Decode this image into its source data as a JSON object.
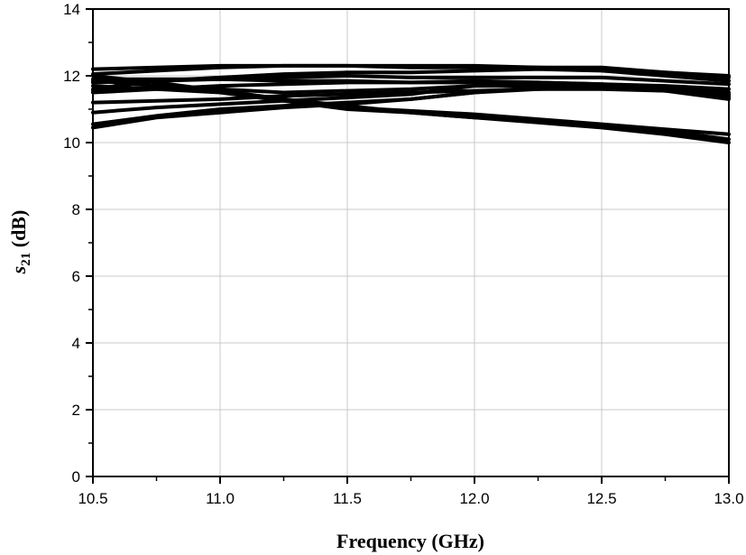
{
  "chart_data": {
    "type": "line",
    "title": "",
    "xlabel": "Frequency (GHz)",
    "ylabel_main": "s",
    "ylabel_sub": "21",
    "ylabel_unit": " (dB)",
    "xlim": [
      10.5,
      13.0
    ],
    "ylim": [
      0,
      14
    ],
    "xticks": [
      "10.5",
      "11.0",
      "11.5",
      "12.0",
      "12.5",
      "13.0"
    ],
    "yticks": [
      "0",
      "2",
      "4",
      "6",
      "8",
      "10",
      "12",
      "14"
    ],
    "grid": true,
    "x": [
      10.5,
      10.75,
      11.0,
      11.25,
      11.5,
      11.75,
      12.0,
      12.25,
      12.5,
      12.75,
      13.0
    ],
    "series": [
      {
        "values": [
          12.2,
          12.25,
          12.3,
          12.3,
          12.3,
          12.25,
          12.25,
          12.25,
          12.25,
          12.1,
          12.0
        ]
      },
      {
        "values": [
          12.05,
          12.15,
          12.25,
          12.3,
          12.3,
          12.3,
          12.3,
          12.25,
          12.2,
          12.1,
          11.95
        ]
      },
      {
        "values": [
          11.6,
          11.85,
          11.95,
          12.05,
          12.1,
          12.1,
          12.15,
          12.2,
          12.15,
          12.0,
          11.85
        ]
      },
      {
        "values": [
          11.8,
          11.85,
          11.9,
          11.95,
          12.0,
          11.95,
          11.95,
          11.95,
          11.95,
          11.85,
          11.75
        ]
      },
      {
        "values": [
          11.9,
          11.9,
          11.9,
          11.85,
          11.85,
          11.8,
          11.8,
          11.8,
          11.75,
          11.7,
          11.6
        ]
      },
      {
        "values": [
          11.5,
          11.6,
          11.7,
          11.75,
          11.8,
          11.8,
          11.85,
          11.8,
          11.75,
          11.65,
          11.5
        ]
      },
      {
        "values": [
          11.85,
          11.7,
          11.6,
          11.5,
          11.55,
          11.6,
          11.7,
          11.7,
          11.7,
          11.6,
          11.45
        ]
      },
      {
        "values": [
          11.2,
          11.25,
          11.3,
          11.4,
          11.45,
          11.5,
          11.55,
          11.6,
          11.6,
          11.55,
          11.4
        ]
      },
      {
        "values": [
          10.9,
          11.05,
          11.15,
          11.25,
          11.35,
          11.45,
          11.7,
          11.7,
          11.7,
          11.6,
          11.35
        ]
      },
      {
        "values": [
          10.55,
          10.8,
          11.0,
          11.1,
          11.2,
          11.3,
          11.5,
          11.65,
          11.7,
          11.6,
          11.4
        ]
      },
      {
        "values": [
          10.45,
          10.75,
          10.9,
          11.05,
          11.15,
          11.3,
          11.5,
          11.6,
          11.65,
          11.55,
          11.3
        ]
      },
      {
        "values": [
          12.0,
          11.8,
          11.55,
          11.3,
          11.1,
          10.9,
          10.75,
          10.6,
          10.45,
          10.25,
          10.0
        ]
      },
      {
        "values": [
          11.7,
          11.6,
          11.5,
          11.25,
          11.0,
          10.9,
          10.75,
          10.65,
          10.5,
          10.35,
          10.1
        ]
      },
      {
        "values": [
          11.55,
          11.65,
          11.55,
          11.3,
          11.05,
          10.95,
          10.85,
          10.7,
          10.55,
          10.4,
          10.25
        ]
      }
    ]
  }
}
